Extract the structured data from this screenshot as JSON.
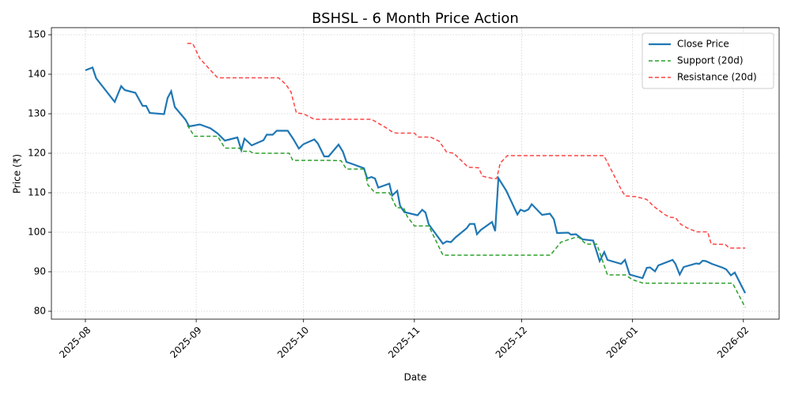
{
  "chart_data": {
    "type": "line",
    "title": "BSHSL - 6 Month Price Action",
    "x_label": "Date",
    "y_label": "Price (₹)",
    "xlim": [
      -9.5,
      194
    ],
    "ylim": [
      78,
      151.8
    ],
    "xticks": [
      {
        "value": 0,
        "label": "2025-08"
      },
      {
        "value": 31,
        "label": "2025-09"
      },
      {
        "value": 61,
        "label": "2025-10"
      },
      {
        "value": 92,
        "label": "2025-11"
      },
      {
        "value": 122,
        "label": "2025-12"
      },
      {
        "value": 153,
        "label": "2026-01"
      },
      {
        "value": 184,
        "label": "2026-02"
      }
    ],
    "yticks": [
      80,
      90,
      100,
      110,
      120,
      130,
      140,
      150
    ],
    "grid": true,
    "legend": "upper right",
    "series": [
      {
        "name": "Close Price",
        "color": "#1f77b4",
        "dashed": false,
        "x": [
          0,
          2,
          3,
          8.2,
          10,
          11,
          14,
          16,
          17,
          18,
          22,
          23,
          24,
          25,
          28,
          29,
          32,
          35,
          37,
          39,
          42.5,
          43.6,
          44.5,
          46.5,
          49.8,
          50.7,
          52.4,
          53.5,
          56.6,
          58.2,
          59.7,
          61,
          64,
          65,
          66.8,
          68,
          70.8,
          72,
          73,
          74.6,
          77.9,
          78.8,
          80,
          81,
          81.9,
          85,
          85.8,
          87.2,
          88,
          89.2,
          92.9,
          94.2,
          95.1,
          96,
          100,
          101,
          102.2,
          103.5,
          106.6,
          107.5,
          108.8,
          109.5,
          110.6,
          113.7,
          114.6,
          115.5,
          117.7,
          120.8,
          121.7,
          122.8,
          123.9,
          124.8,
          127.7,
          129.9,
          131,
          131.9,
          135,
          135.8,
          137.2,
          139,
          142,
          143.8,
          145.1,
          146,
          149.8,
          150.9,
          152.2,
          155.8,
          157,
          157.9,
          159.3,
          160.2,
          164.2,
          165,
          166.2,
          167.3,
          170.8,
          171.7,
          172.6,
          173.5,
          175.2,
          178.3,
          179.2,
          180.5,
          181.6,
          184.5
        ],
        "values": [
          141,
          141.7,
          139,
          133,
          137,
          136,
          135.3,
          132,
          132,
          130.2,
          129.9,
          134,
          135.7,
          131.7,
          128.5,
          126.8,
          127.3,
          126.3,
          125,
          123.2,
          124,
          120.8,
          123.7,
          122,
          123.3,
          124.7,
          124.7,
          125.7,
          125.7,
          123.5,
          121.2,
          122.3,
          123.5,
          122.5,
          119.2,
          119.2,
          122.2,
          120.4,
          117.8,
          117.3,
          116.2,
          113.6,
          114,
          113.6,
          111.3,
          112.3,
          109.3,
          110.5,
          106.7,
          105.1,
          104.3,
          105.7,
          105,
          102,
          97.1,
          97.7,
          97.5,
          98.7,
          101,
          102.1,
          102.1,
          99.5,
          100.6,
          102.6,
          100.3,
          113.7,
          110.5,
          104.5,
          105.7,
          105.3,
          105.8,
          107.1,
          104.4,
          104.7,
          103.3,
          99.8,
          99.9,
          99.4,
          99.5,
          98.2,
          97.9,
          92.7,
          95,
          93,
          92,
          93,
          89.3,
          88.4,
          91,
          91.1,
          90.1,
          91.6,
          93,
          92,
          89.3,
          91.2,
          92.1,
          92,
          92.8,
          92.7,
          92,
          91,
          90.6,
          89.1,
          89.8,
          84.6
        ]
      },
      {
        "name": "Support (20d)",
        "color": "#2ca02c",
        "dashed": true,
        "x": [
          28.5,
          30.5,
          37,
          39,
          43,
          44,
          46,
          47,
          57,
          58,
          68,
          71.5,
          73,
          78,
          79,
          81,
          85,
          87,
          89,
          90,
          92,
          96,
          100,
          130,
          133,
          137,
          138,
          140,
          143,
          146,
          151,
          153,
          156,
          181,
          184.5
        ],
        "values": [
          127.1,
          124.3,
          124.3,
          121.3,
          121.3,
          120.5,
          120.5,
          120,
          120,
          118.2,
          118.2,
          118.1,
          116,
          116,
          112,
          110,
          110,
          106.2,
          106.2,
          104,
          101.6,
          101.6,
          94.2,
          94.2,
          97.5,
          98.7,
          98.7,
          97,
          97,
          89.2,
          89.2,
          88,
          87.1,
          87.1,
          81
        ]
      },
      {
        "name": "Resistance (20d)",
        "color": "#ff4444",
        "dashed": true,
        "x": [
          28.5,
          30,
          32,
          35,
          37,
          54,
          56,
          57.5,
          59,
          61,
          64,
          80,
          84,
          86,
          87,
          92,
          93,
          96.5,
          99,
          101,
          103,
          107,
          110,
          111,
          114,
          115,
          116,
          118,
          145,
          147.5,
          150,
          151,
          154,
          157,
          159,
          162,
          163.5,
          165,
          166.5,
          168.5,
          171,
          174,
          175,
          179,
          180,
          184.5
        ],
        "values": [
          147.8,
          147.8,
          144,
          141,
          139.1,
          139.1,
          137.5,
          135.5,
          130.2,
          130,
          128.6,
          128.6,
          126.5,
          125.3,
          125.1,
          125.1,
          124.1,
          124.1,
          123,
          120.3,
          120,
          116.5,
          116.3,
          114.2,
          113.6,
          113.6,
          117.5,
          119.4,
          119.4,
          115,
          110.5,
          109.2,
          109,
          108.3,
          106.5,
          104.5,
          103.8,
          103.7,
          102,
          101,
          100.1,
          100.1,
          97,
          96.9,
          96,
          96
        ]
      }
    ]
  }
}
